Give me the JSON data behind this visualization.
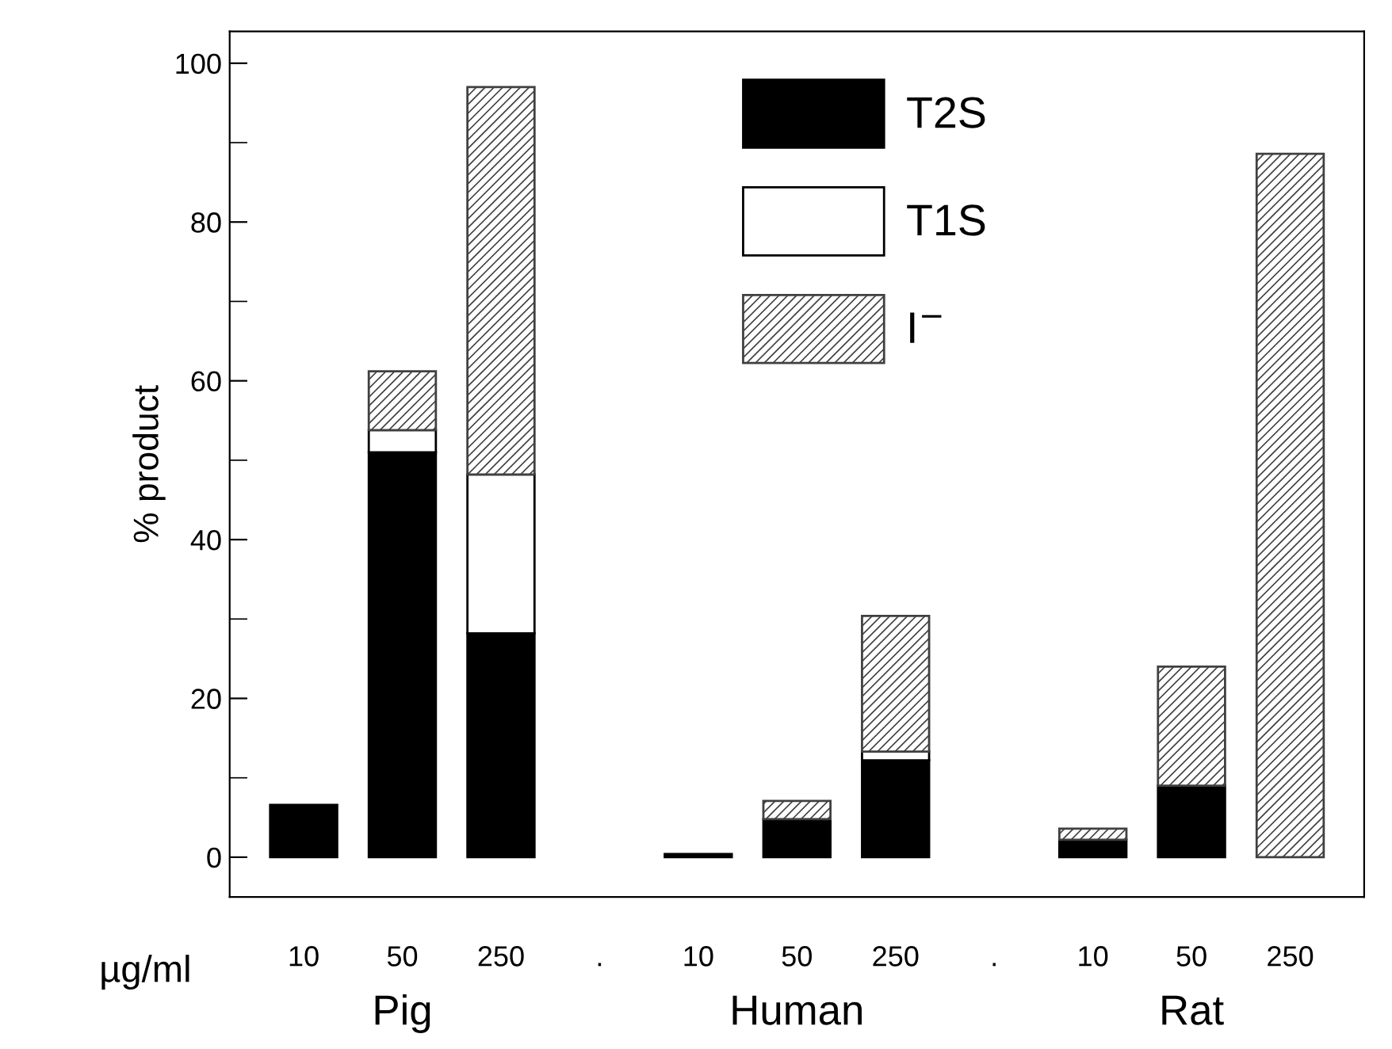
{
  "chart_data": {
    "type": "bar",
    "stacked": true,
    "ylabel": "% product",
    "xlabel": "µg/ml",
    "categories": [
      "10",
      "50",
      "250",
      ".",
      "10",
      "50",
      "250",
      ".",
      "10",
      "50",
      "250"
    ],
    "series": [
      {
        "name": "T2S",
        "color": "#000000",
        "values": [
          6.6,
          51,
          28.2,
          null,
          0.4,
          4.8,
          12.2,
          null,
          2.2,
          9,
          null
        ]
      },
      {
        "name": "T1S",
        "color": "#ffffff",
        "values": [
          null,
          2.8,
          20,
          null,
          null,
          null,
          1.1,
          null,
          null,
          null,
          null
        ]
      },
      {
        "name": "I$^{−}$",
        "color": "#404040",
        "values": [
          null,
          7.4,
          48.8,
          null,
          null,
          2.3,
          17.1,
          null,
          1.4,
          15,
          88.6
        ]
      }
    ],
    "ylim": [
      -5,
      104
    ],
    "yticks": [
      0,
      20,
      40,
      60,
      80,
      100
    ],
    "annotations": [
      "Pig",
      "Human",
      "Rat"
    ],
    "legend": "top",
    "grid": false
  }
}
